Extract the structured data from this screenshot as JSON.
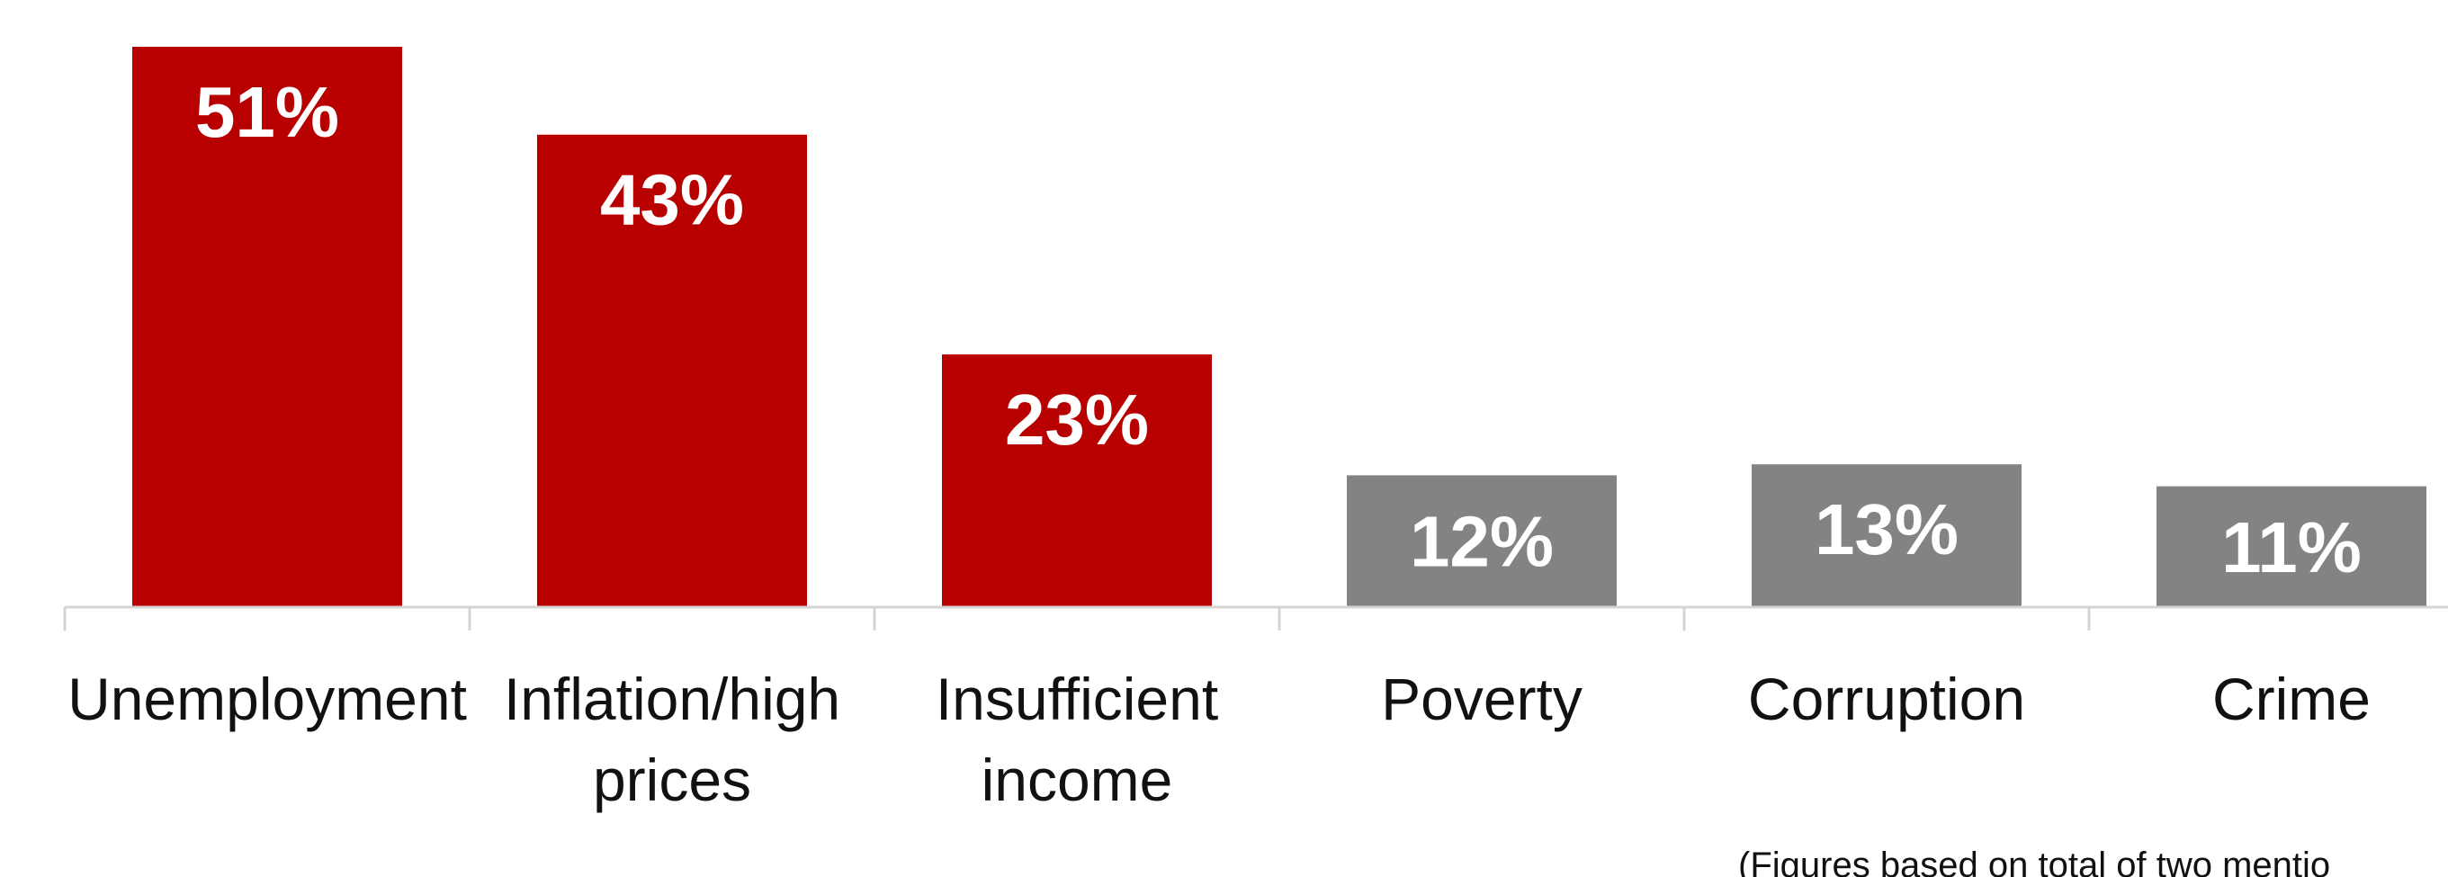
{
  "chart_data": {
    "type": "bar",
    "categories": [
      [
        "Unemployment"
      ],
      [
        "Inflation/high",
        "prices"
      ],
      [
        "Insufficient",
        "income"
      ],
      [
        "Poverty"
      ],
      [
        "Corruption"
      ],
      [
        "Crime"
      ]
    ],
    "values": [
      51,
      43,
      23,
      12,
      13,
      11
    ],
    "value_labels": [
      "51%",
      "43%",
      "23%",
      "12%",
      "13%",
      "11%"
    ],
    "bar_colors": [
      "#b80000",
      "#b80000",
      "#b80000",
      "#828385",
      "#828385",
      "#828385"
    ],
    "ylim": [
      0,
      51
    ],
    "grid": false,
    "footnote": "(Figures based on total of two mentio"
  }
}
